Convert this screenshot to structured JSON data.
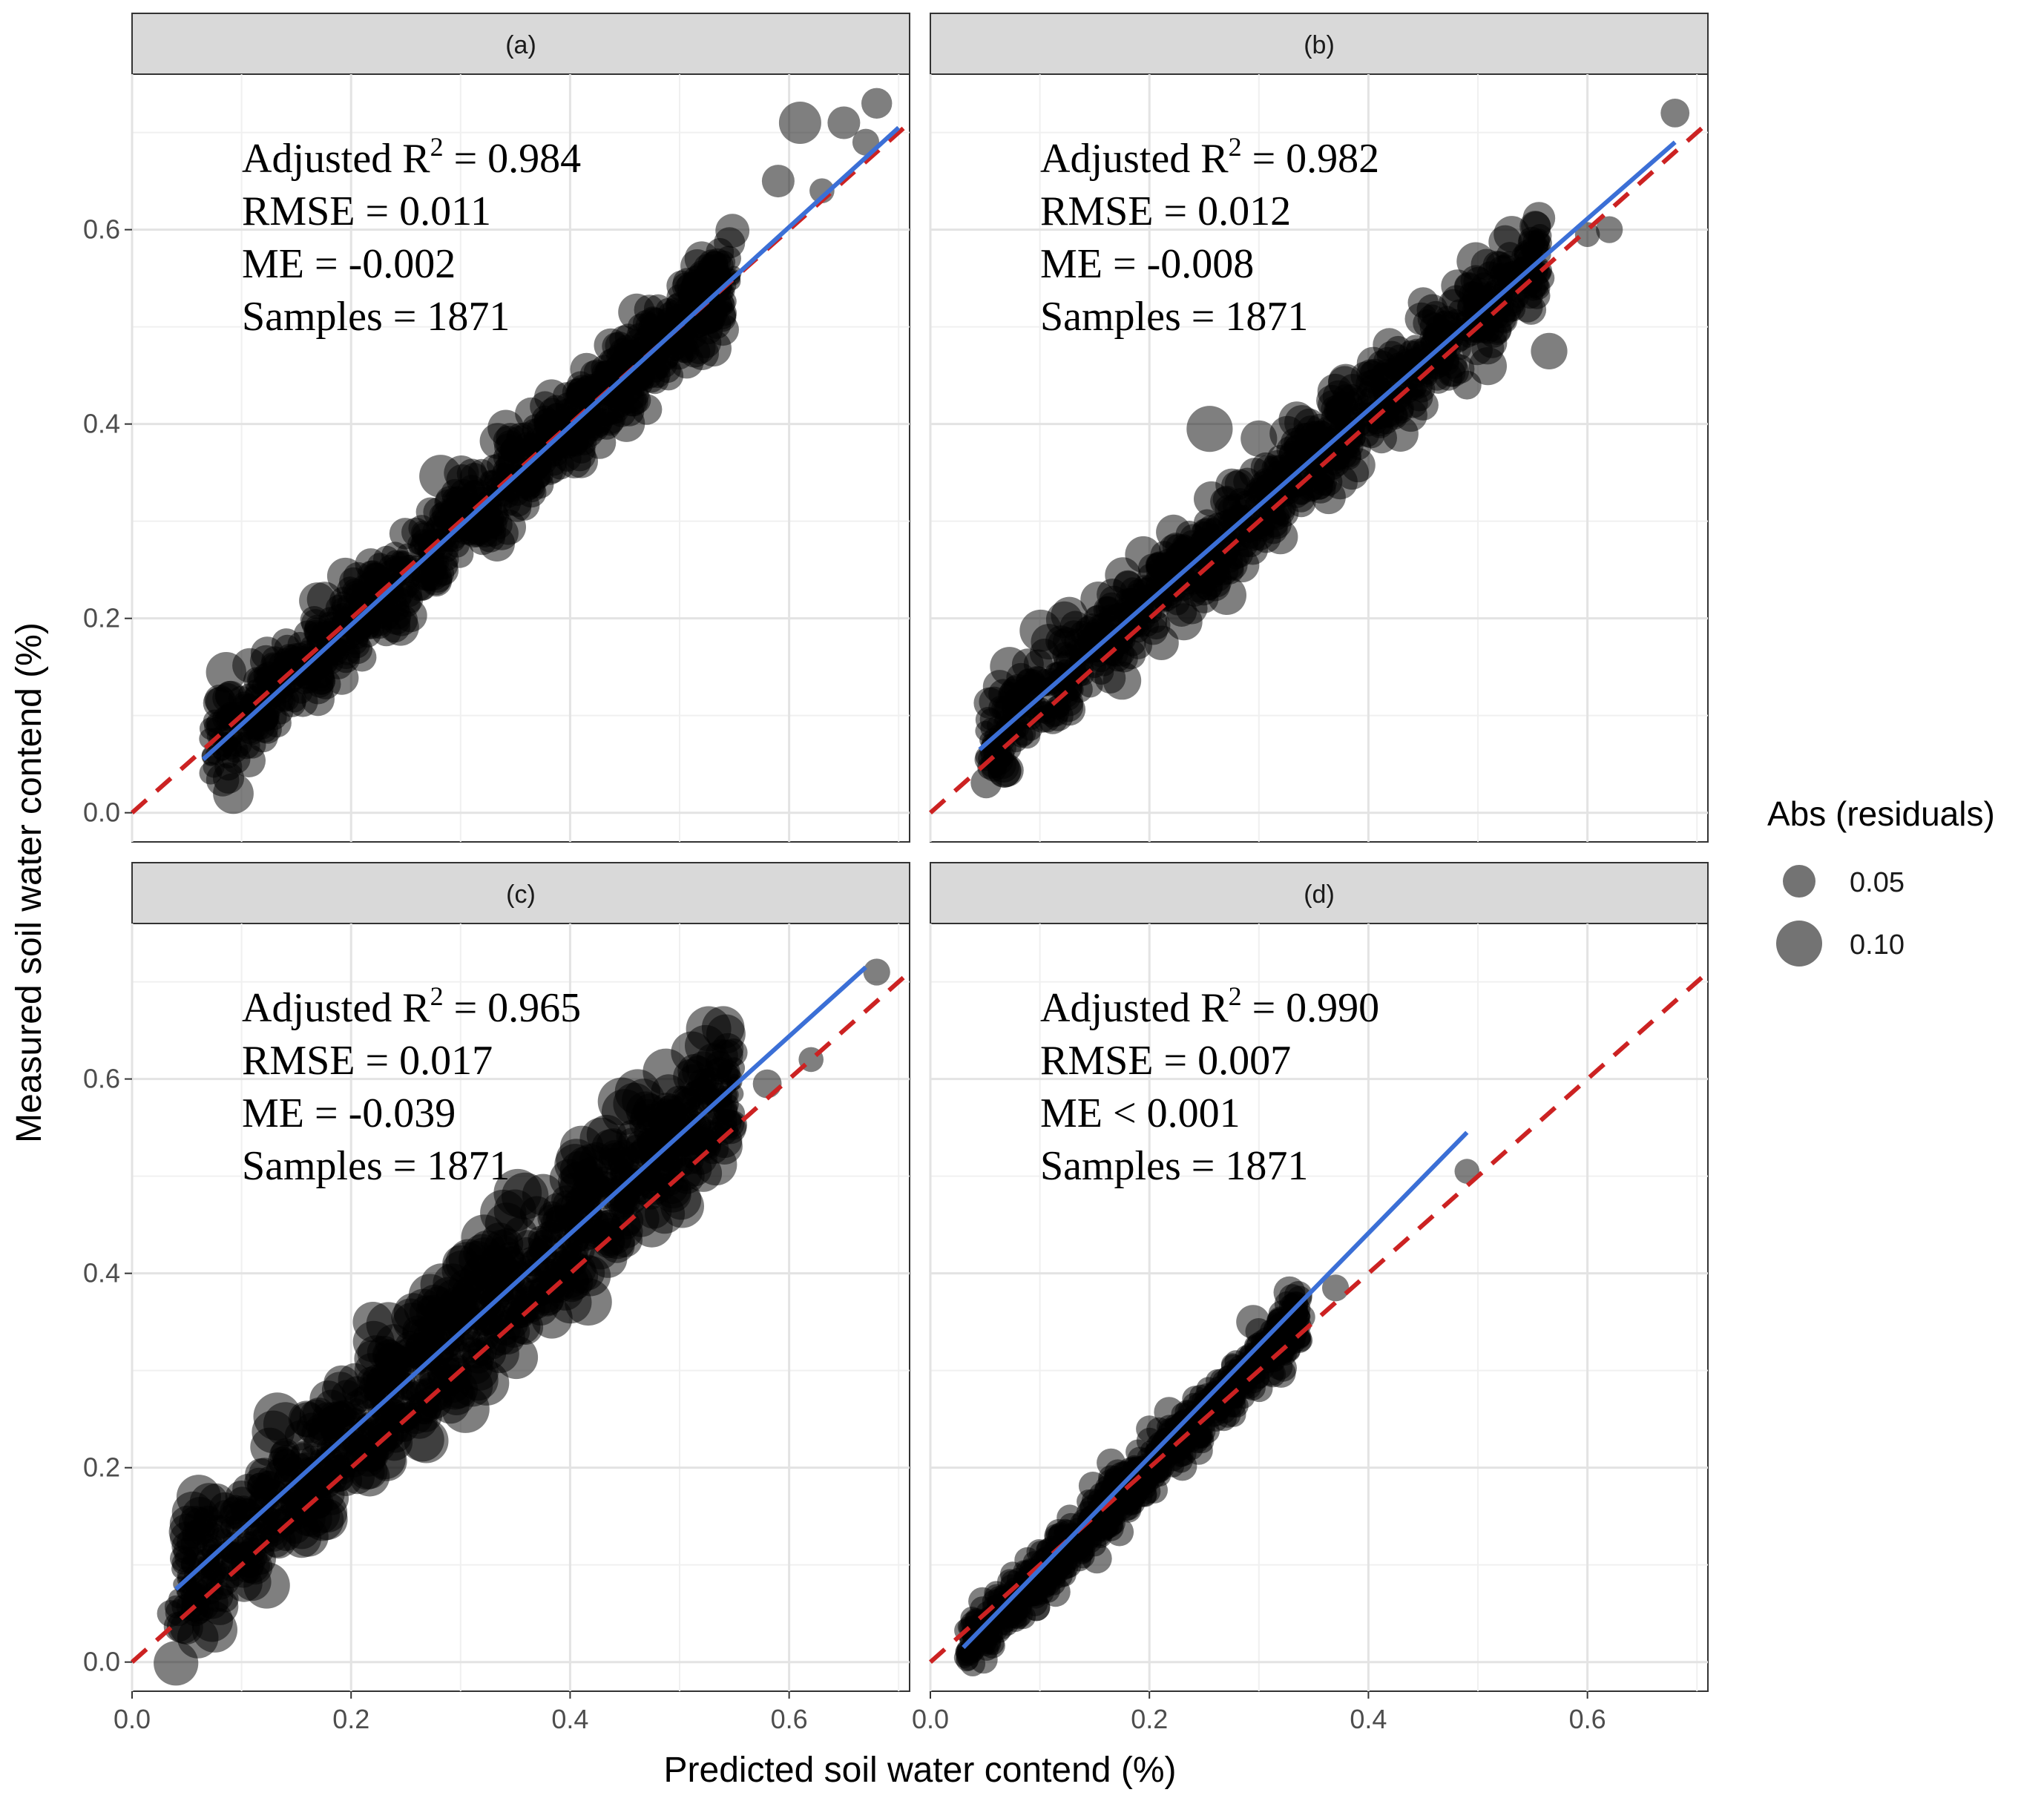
{
  "chart_data": {
    "type": "scatter",
    "xlabel": "Predicted soil water contend (%)",
    "ylabel": "Measured soil water contend (%)",
    "xlim": [
      0.0,
      0.71
    ],
    "ylim": [
      -0.03,
      0.76
    ],
    "x_ticks": [
      0.0,
      0.2,
      0.4,
      0.6
    ],
    "x_tick_labels": [
      "0.0",
      "0.2",
      "0.4",
      "0.6"
    ],
    "y_ticks": [
      0.0,
      0.2,
      0.4,
      0.6
    ],
    "y_tick_labels": [
      "0.0",
      "0.2",
      "0.4",
      "0.6"
    ],
    "grid": true,
    "legend": {
      "title": "Abs (residuals)",
      "placement": "right",
      "entries": [
        {
          "label": "0.05",
          "value": 0.05
        },
        {
          "label": "0.10",
          "value": 0.1
        }
      ]
    },
    "reference_line": {
      "name": "1:1 line",
      "style": "dashed",
      "color": "#cc2222"
    },
    "fit_line": {
      "name": "fitted line",
      "style": "solid",
      "color": "#3b6fd6"
    },
    "point_color": "#000000",
    "panels": [
      {
        "label": "(a)",
        "stats": {
          "r2_prefix": "Adjusted R",
          "r2_sup": "2",
          "r2_suffix": " = 0.984",
          "rmse": "RMSE = 0.011",
          "me": "ME = -0.002",
          "samples": "Samples = 1871"
        },
        "fit": {
          "x": [
            0.065,
            0.7
          ],
          "y": [
            0.055,
            0.705
          ]
        },
        "range": [
          0.07,
          0.55
        ],
        "slope": 1.02,
        "intercept": -0.008,
        "spread": 0.02,
        "outliers": [
          [
            0.61,
            0.71,
            0.075
          ],
          [
            0.65,
            0.71,
            0.05
          ],
          [
            0.68,
            0.73,
            0.045
          ],
          [
            0.59,
            0.65,
            0.05
          ],
          [
            0.47,
            0.415,
            0.045
          ],
          [
            0.44,
            0.465,
            0.035
          ],
          [
            0.21,
            0.16,
            0.04
          ],
          [
            0.63,
            0.64,
            0.03
          ],
          [
            0.67,
            0.69,
            0.035
          ]
        ]
      },
      {
        "label": "(b)",
        "stats": {
          "r2_prefix": "Adjusted R",
          "r2_sup": "2",
          "r2_suffix": " = 0.982",
          "rmse": "RMSE = 0.012",
          "me": "ME = -0.008",
          "samples": "Samples = 1871"
        },
        "fit": {
          "x": [
            0.045,
            0.68
          ],
          "y": [
            0.065,
            0.69
          ]
        },
        "range": [
          0.05,
          0.56
        ],
        "slope": 0.985,
        "intercept": 0.02,
        "spread": 0.02,
        "outliers": [
          [
            0.255,
            0.395,
            0.085
          ],
          [
            0.3,
            0.385,
            0.06
          ],
          [
            0.45,
            0.525,
            0.045
          ],
          [
            0.565,
            0.475,
            0.06
          ],
          [
            0.49,
            0.44,
            0.04
          ],
          [
            0.25,
            0.22,
            0.04
          ],
          [
            0.68,
            0.72,
            0.04
          ],
          [
            0.62,
            0.6,
            0.035
          ],
          [
            0.6,
            0.595,
            0.03
          ],
          [
            0.46,
            0.5,
            0.04
          ]
        ]
      },
      {
        "label": "(c)",
        "stats": {
          "r2_prefix": "Adjusted R",
          "r2_sup": "2",
          "r2_suffix": " = 0.965",
          "rmse": "RMSE = 0.017",
          "me": "ME = -0.039",
          "samples": "Samples = 1871"
        },
        "fit": {
          "x": [
            0.04,
            0.67
          ],
          "y": [
            0.075,
            0.715
          ]
        },
        "range": [
          0.04,
          0.55
        ],
        "slope": 1.02,
        "intercept": 0.033,
        "spread": 0.03,
        "outliers": [
          [
            0.22,
            0.35,
            0.07
          ],
          [
            0.19,
            0.28,
            0.06
          ],
          [
            0.3,
            0.41,
            0.06
          ],
          [
            0.1,
            0.17,
            0.05
          ],
          [
            0.68,
            0.71,
            0.035
          ],
          [
            0.62,
            0.62,
            0.03
          ],
          [
            0.58,
            0.595,
            0.04
          ],
          [
            0.035,
            0.05,
            0.035
          ],
          [
            0.085,
            0.065,
            0.035
          ],
          [
            0.5,
            0.54,
            0.04
          ]
        ]
      },
      {
        "label": "(d)",
        "stats": {
          "r2_prefix": "Adjusted R",
          "r2_sup": "",
          "r2_suffix": "",
          "rmse": "RMSE = 0.007",
          "me": "ME < 0.001",
          "samples": "Samples = 1871"
        },
        "fit": {
          "x": [
            0.03,
            0.49
          ],
          "y": [
            0.015,
            0.545
          ]
        },
        "range": [
          0.03,
          0.34
        ],
        "slope": 1.1,
        "intercept": -0.02,
        "spread": 0.012,
        "outliers": [
          [
            0.49,
            0.505,
            0.03
          ],
          [
            0.37,
            0.385,
            0.035
          ],
          [
            0.165,
            0.205,
            0.04
          ],
          [
            0.2,
            0.24,
            0.035
          ],
          [
            0.035,
            0.01,
            0.035
          ],
          [
            0.34,
            0.355,
            0.03
          ]
        ]
      }
    ]
  },
  "panel_d_r2": {
    "sup": "2",
    "suffix": " = 0.990"
  }
}
